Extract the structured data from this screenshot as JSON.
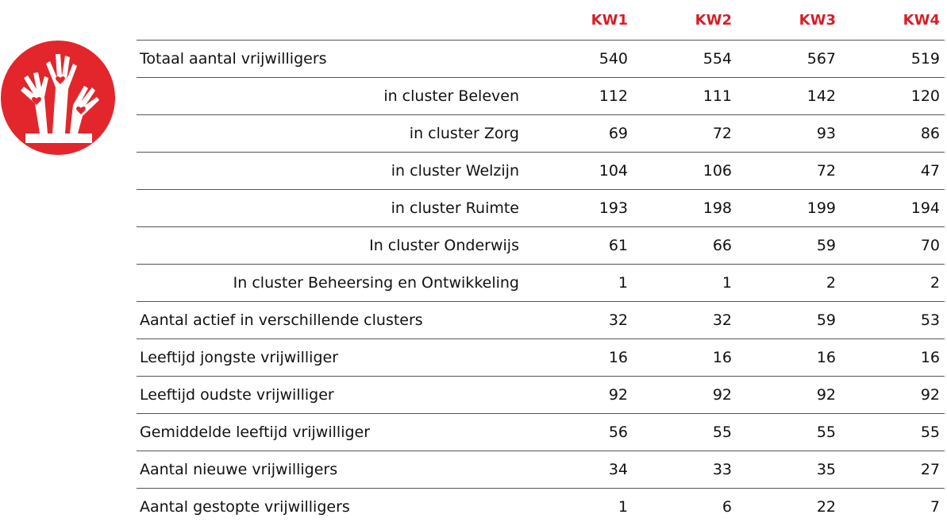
{
  "table": {
    "header": [
      "KW1",
      "KW2",
      "KW3",
      "KW4"
    ],
    "rows": [
      [
        "Totaal aantal vrijwilligers",
        540,
        554,
        567,
        519
      ],
      [
        "in cluster Beleven",
        112,
        111,
        142,
        120
      ],
      [
        "in cluster Zorg",
        69,
        72,
        93,
        86
      ],
      [
        "in cluster Welzijn",
        104,
        106,
        72,
        47
      ],
      [
        "in cluster Ruimte",
        193,
        198,
        199,
        194
      ],
      [
        "In cluster Onderwijs",
        61,
        66,
        59,
        70
      ],
      [
        "In cluster Beheersing en Ontwikkeling",
        1,
        1,
        2,
        2
      ],
      [
        "Aantal actief in verschillende clusters",
        32,
        32,
        59,
        53
      ],
      [
        "Leeftijd jongste vrijwilliger",
        16,
        16,
        16,
        16
      ],
      [
        "Leeftijd oudste vrijwilliger",
        92,
        92,
        92,
        92
      ],
      [
        "Gemiddelde leeftijd vrijwilliger",
        56,
        55,
        55,
        55
      ],
      [
        "Aantal nieuwe vrijwilligers",
        34,
        33,
        35,
        27
      ],
      [
        "Aantal gestopte vrijwilligers",
        1,
        6,
        22,
        7
      ]
    ]
  }
}
